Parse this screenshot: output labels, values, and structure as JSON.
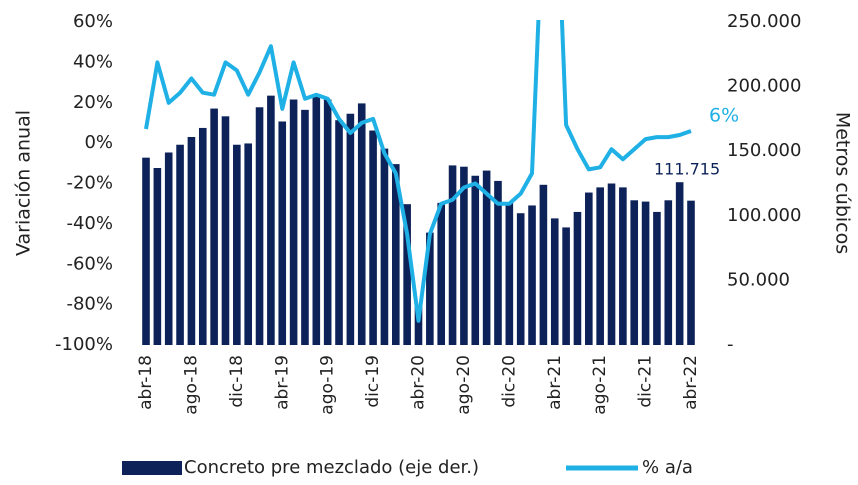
{
  "chart_data": {
    "type": "bar_line",
    "y_label": "Variación anual",
    "y2_label": "Metros cúbicos",
    "categories": [
      "abr-18",
      null,
      null,
      null,
      "ago-18",
      null,
      null,
      null,
      "dic-18",
      null,
      null,
      null,
      "abr-19",
      null,
      null,
      null,
      "ago-19",
      null,
      null,
      null,
      "dic-19",
      null,
      null,
      null,
      "abr-20",
      null,
      null,
      null,
      "ago-20",
      null,
      null,
      null,
      "dic-20",
      null,
      null,
      null,
      "abr-21",
      null,
      null,
      null,
      "ago-21",
      null,
      null,
      null,
      "dic-21",
      null,
      null,
      null,
      "abr-22"
    ],
    "series": [
      {
        "name": "Concreto pre mezclado (eje der.)",
        "type": "bar",
        "axis": "y2",
        "color": "#0d2259",
        "values": [
          145000,
          137000,
          149000,
          155000,
          161000,
          168000,
          183000,
          177000,
          155000,
          156000,
          184000,
          193000,
          173000,
          190000,
          182000,
          193000,
          190000,
          174000,
          179000,
          187000,
          166000,
          152000,
          140000,
          109000,
          30000,
          87000,
          110000,
          139000,
          138000,
          131000,
          135000,
          127000,
          110000,
          102000,
          108000,
          124000,
          98000,
          91000,
          103000,
          118000,
          122000,
          125000,
          122000,
          112000,
          111000,
          103000,
          112000,
          126000,
          111715
        ],
        "value_labels": [
          null,
          null,
          null,
          null,
          null,
          null,
          null,
          null,
          null,
          null,
          null,
          null,
          null,
          null,
          null,
          null,
          null,
          null,
          null,
          null,
          null,
          null,
          null,
          null,
          null,
          null,
          null,
          null,
          null,
          null,
          null,
          null,
          null,
          null,
          null,
          null,
          null,
          null,
          null,
          null,
          null,
          null,
          null,
          null,
          null,
          null,
          null,
          null,
          "111.715"
        ]
      },
      {
        "name": "% a/a",
        "type": "line",
        "color": "#1fb0e6",
        "values": [
          7,
          40,
          20,
          25,
          32,
          25,
          24,
          40,
          36,
          24,
          35,
          48,
          17,
          40,
          22,
          24,
          22,
          12,
          5,
          10,
          12,
          -5,
          -15,
          -45,
          -88,
          -45,
          -30,
          -28,
          -22,
          -20,
          -25,
          -30,
          -30,
          -25,
          -15,
          120,
          150,
          9,
          -3,
          -13,
          -12,
          -3,
          -8,
          -3,
          2,
          3,
          3,
          4,
          6
        ],
        "value_labels": [
          null,
          null,
          null,
          null,
          null,
          null,
          null,
          null,
          null,
          null,
          null,
          null,
          null,
          null,
          null,
          null,
          null,
          null,
          null,
          null,
          null,
          null,
          null,
          null,
          null,
          null,
          null,
          null,
          null,
          null,
          null,
          null,
          null,
          null,
          null,
          null,
          null,
          null,
          null,
          null,
          null,
          null,
          null,
          null,
          null,
          null,
          null,
          null,
          "6%"
        ]
      }
    ],
    "ylim": [
      -100,
      60
    ],
    "yticks": [
      {
        "value": -100,
        "label": "-100%"
      },
      {
        "value": -80,
        "label": "-80%"
      },
      {
        "value": -60,
        "label": "-60%"
      },
      {
        "value": -40,
        "label": "-40%"
      },
      {
        "value": -20,
        "label": "-20%"
      },
      {
        "value": 0,
        "label": "0%"
      },
      {
        "value": 20,
        "label": "20%"
      },
      {
        "value": 40,
        "label": "40%"
      },
      {
        "value": 60,
        "label": "60%"
      }
    ],
    "y2lim": [
      0,
      250000
    ],
    "y2ticks": [
      {
        "value": 0,
        "label": "-"
      },
      {
        "value": 50000,
        "label": "50.000"
      },
      {
        "value": 100000,
        "label": "100.000"
      },
      {
        "value": 150000,
        "label": "150.000"
      },
      {
        "value": 200000,
        "label": "200.000"
      },
      {
        "value": 250000,
        "label": "250.000"
      }
    ],
    "legend": "bottom",
    "grid": false
  }
}
